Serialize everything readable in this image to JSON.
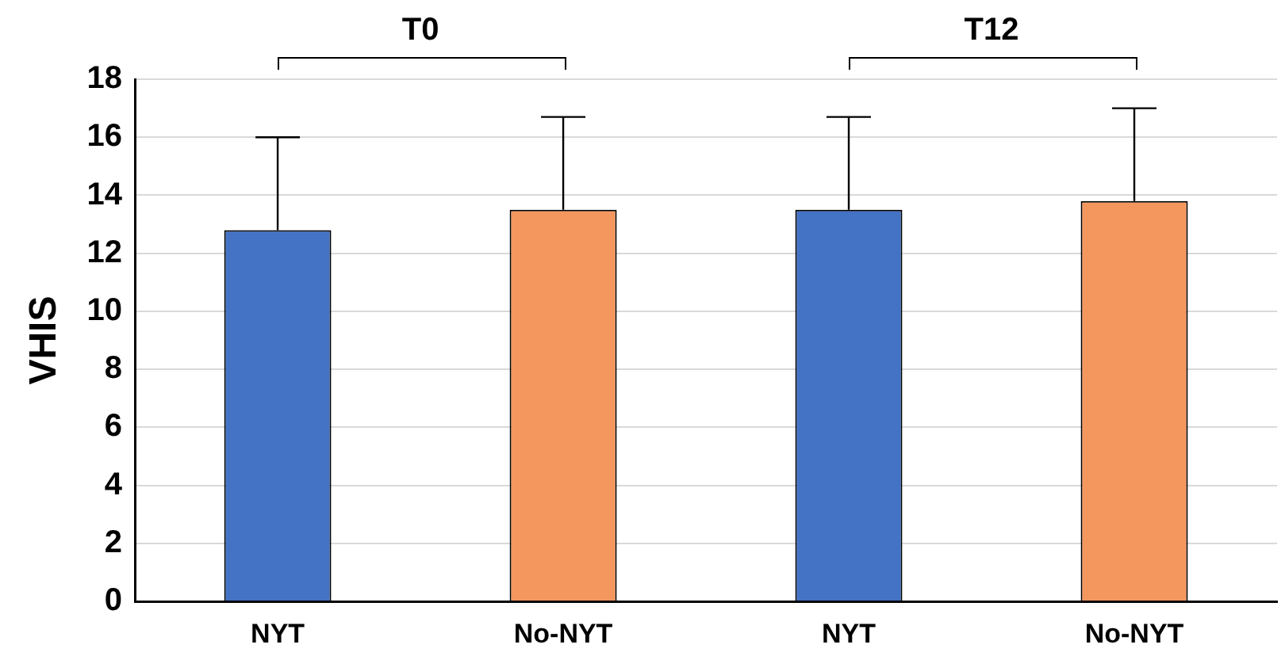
{
  "chart_data": {
    "type": "bar",
    "ylabel": "VHIS",
    "categories": [
      "NYT",
      "No-NYT",
      "NYT",
      "No-NYT"
    ],
    "values": [
      12.8,
      13.5,
      13.5,
      13.8
    ],
    "colors": [
      "#4472c4",
      "#f4975f",
      "#4472c4",
      "#f4975f"
    ],
    "errors": [
      3.2,
      3.2,
      3.2,
      3.2
    ],
    "ylim": [
      0,
      18
    ],
    "yticks": [
      0,
      2,
      4,
      6,
      8,
      10,
      12,
      14,
      16,
      18
    ],
    "grid": "y",
    "legend": false,
    "annotations": [
      "T0",
      "T12"
    ]
  }
}
